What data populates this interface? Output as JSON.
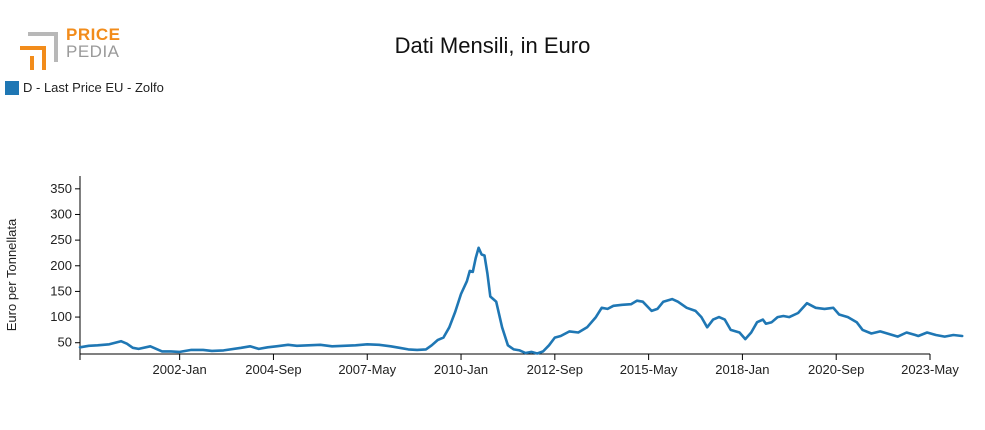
{
  "brand": {
    "line1": "PRICE",
    "line2": "PEDIA",
    "accent": "#f28c1b",
    "gray": "#9a9a9a"
  },
  "chart_data": {
    "type": "line",
    "title": "Dati Mensili, in Euro",
    "ylabel": "Euro per Tonnellata",
    "xlabel": "",
    "ylim": [
      28,
      375
    ],
    "y_ticks": [
      50,
      100,
      150,
      200,
      250,
      300,
      350
    ],
    "x_range": [
      "1999-03",
      "2023-05"
    ],
    "x_ticks": [
      {
        "label": "2002-Jan",
        "date": "2002-01"
      },
      {
        "label": "2004-Sep",
        "date": "2004-09"
      },
      {
        "label": "2007-May",
        "date": "2007-05"
      },
      {
        "label": "2010-Jan",
        "date": "2010-01"
      },
      {
        "label": "2012-Sep",
        "date": "2012-09"
      },
      {
        "label": "2015-May",
        "date": "2015-05"
      },
      {
        "label": "2018-Jan",
        "date": "2018-01"
      },
      {
        "label": "2020-Sep",
        "date": "2020-09"
      },
      {
        "label": "2023-May",
        "date": "2023-05"
      }
    ],
    "grid": false,
    "legend_position": "top-left",
    "series": [
      {
        "name": "D - Last Price EU - Zolfo",
        "color": "#1f77b4",
        "points": [
          [
            "1999-03",
            41
          ],
          [
            "1999-06",
            44
          ],
          [
            "1999-09",
            45
          ],
          [
            "2000-01",
            47
          ],
          [
            "2000-05",
            53
          ],
          [
            "2000-07",
            48
          ],
          [
            "2000-09",
            40
          ],
          [
            "2000-11",
            38
          ],
          [
            "2001-03",
            43
          ],
          [
            "2001-07",
            33
          ],
          [
            "2001-10",
            33
          ],
          [
            "2002-01",
            32
          ],
          [
            "2002-05",
            36
          ],
          [
            "2002-09",
            36
          ],
          [
            "2002-12",
            34
          ],
          [
            "2003-04",
            35
          ],
          [
            "2003-10",
            40
          ],
          [
            "2004-01",
            43
          ],
          [
            "2004-04",
            38
          ],
          [
            "2004-07",
            41
          ],
          [
            "2004-10",
            43
          ],
          [
            "2005-02",
            46
          ],
          [
            "2005-05",
            44
          ],
          [
            "2005-09",
            45
          ],
          [
            "2006-01",
            46
          ],
          [
            "2006-05",
            43
          ],
          [
            "2006-09",
            44
          ],
          [
            "2007-01",
            45
          ],
          [
            "2007-05",
            47
          ],
          [
            "2007-09",
            46
          ],
          [
            "2008-01",
            43
          ],
          [
            "2008-04",
            40
          ],
          [
            "2008-07",
            37
          ],
          [
            "2008-10",
            36
          ],
          [
            "2009-01",
            37
          ],
          [
            "2009-03",
            45
          ],
          [
            "2009-05",
            55
          ],
          [
            "2009-07",
            60
          ],
          [
            "2009-09",
            80
          ],
          [
            "2009-11",
            110
          ],
          [
            "2010-01",
            145
          ],
          [
            "2010-03",
            170
          ],
          [
            "2010-04",
            190
          ],
          [
            "2010-05",
            188
          ],
          [
            "2010-06",
            215
          ],
          [
            "2010-07",
            235
          ],
          [
            "2010-08",
            222
          ],
          [
            "2010-09",
            220
          ],
          [
            "2010-10",
            185
          ],
          [
            "2010-11",
            140
          ],
          [
            "2010-12",
            135
          ],
          [
            "2011-01",
            130
          ],
          [
            "2011-03",
            80
          ],
          [
            "2011-05",
            45
          ],
          [
            "2011-07",
            37
          ],
          [
            "2011-09",
            35
          ],
          [
            "2011-11",
            30
          ],
          [
            "2012-01",
            32
          ],
          [
            "2012-03",
            29
          ],
          [
            "2012-05",
            33
          ],
          [
            "2012-07",
            45
          ],
          [
            "2012-09",
            60
          ],
          [
            "2012-11",
            63
          ],
          [
            "2013-02",
            72
          ],
          [
            "2013-05",
            70
          ],
          [
            "2013-08",
            80
          ],
          [
            "2013-11",
            100
          ],
          [
            "2014-01",
            118
          ],
          [
            "2014-03",
            116
          ],
          [
            "2014-05",
            122
          ],
          [
            "2014-08",
            124
          ],
          [
            "2014-11",
            125
          ],
          [
            "2015-01",
            132
          ],
          [
            "2015-03",
            130
          ],
          [
            "2015-06",
            112
          ],
          [
            "2015-08",
            116
          ],
          [
            "2015-10",
            130
          ],
          [
            "2016-01",
            135
          ],
          [
            "2016-03",
            130
          ],
          [
            "2016-06",
            118
          ],
          [
            "2016-09",
            112
          ],
          [
            "2016-11",
            100
          ],
          [
            "2017-01",
            80
          ],
          [
            "2017-03",
            95
          ],
          [
            "2017-05",
            100
          ],
          [
            "2017-07",
            95
          ],
          [
            "2017-09",
            75
          ],
          [
            "2017-12",
            70
          ],
          [
            "2018-02",
            57
          ],
          [
            "2018-04",
            70
          ],
          [
            "2018-06",
            90
          ],
          [
            "2018-08",
            95
          ],
          [
            "2018-09",
            87
          ],
          [
            "2018-11",
            90
          ],
          [
            "2019-01",
            100
          ],
          [
            "2019-03",
            102
          ],
          [
            "2019-05",
            100
          ],
          [
            "2019-08",
            108
          ],
          [
            "2019-11",
            127
          ],
          [
            "2020-02",
            118
          ],
          [
            "2020-05",
            116
          ],
          [
            "2020-08",
            118
          ],
          [
            "2020-10",
            105
          ],
          [
            "2021-01",
            100
          ],
          [
            "2021-04",
            90
          ],
          [
            "2021-06",
            75
          ],
          [
            "2021-09",
            68
          ],
          [
            "2021-12",
            72
          ],
          [
            "2022-03",
            67
          ],
          [
            "2022-06",
            62
          ],
          [
            "2022-09",
            70
          ],
          [
            "2022-12",
            65
          ],
          [
            "2023-01",
            63
          ],
          [
            "2023-04",
            70
          ],
          [
            "2023-07",
            65
          ],
          [
            "2023-10",
            62
          ],
          [
            "2024-01",
            65
          ],
          [
            "2024-04",
            63
          ]
        ]
      }
    ]
  }
}
